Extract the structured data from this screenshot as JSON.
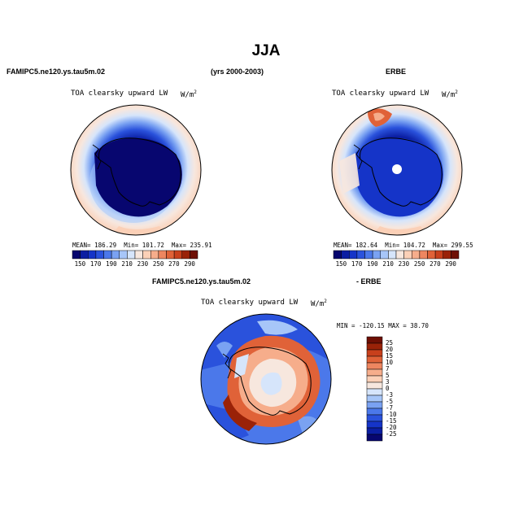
{
  "title": "JJA",
  "panels": {
    "model": {
      "case_label": "FAMIPC5.ne120.ys.tau5m.02",
      "variable": "TOA clearsky upward LW",
      "units": "W/m",
      "units_sup": "2",
      "stats": {
        "mean": "MEAN= 186.29",
        "min": "Min= 101.72",
        "max": "Max= 235.91"
      }
    },
    "period": "(yrs 2000-2003)",
    "obs": {
      "case_label": "ERBE",
      "variable": "TOA clearsky upward LW",
      "units": "W/m",
      "units_sup": "2",
      "stats": {
        "mean": "MEAN= 182.64",
        "min": "Min= 104.72",
        "max": "Max= 299.55"
      }
    },
    "diff": {
      "label_left": "FAMIPC5.ne120.ys.tau5m.02",
      "label_right": "- ERBE",
      "variable": "TOA clearsky upward LW",
      "units": "W/m",
      "units_sup": "2",
      "minmax": "MIN = -120.15 MAX =  38.70"
    }
  },
  "colorbar_abs": {
    "colors": [
      "#07066f",
      "#0b1ea2",
      "#1534c8",
      "#2a52dc",
      "#4b78ea",
      "#7aa2f2",
      "#a7c6f8",
      "#d6e5fb",
      "#f7e7de",
      "#fbd0b7",
      "#f6ad8b",
      "#ee8660",
      "#e06238",
      "#c8401c",
      "#9a2208",
      "#6e0f04"
    ],
    "labels": [
      "150",
      "170",
      "190",
      "210",
      "230",
      "250",
      "270",
      "290"
    ]
  },
  "colorbar_diff": {
    "colors": [
      "#6e0f04",
      "#9a2208",
      "#c8401c",
      "#e06238",
      "#ee8660",
      "#f6ad8b",
      "#fbd0b7",
      "#f7e7de",
      "#d6e5fb",
      "#a7c6f8",
      "#7aa2f2",
      "#4b78ea",
      "#2a52dc",
      "#1534c8",
      "#0b1ea2",
      "#07066f"
    ],
    "labels": [
      "25",
      "20",
      "15",
      "10",
      "7",
      "5",
      "3",
      "0",
      "-3",
      "-5",
      "-7",
      "-10",
      "-15",
      "-20",
      "-25"
    ]
  }
}
